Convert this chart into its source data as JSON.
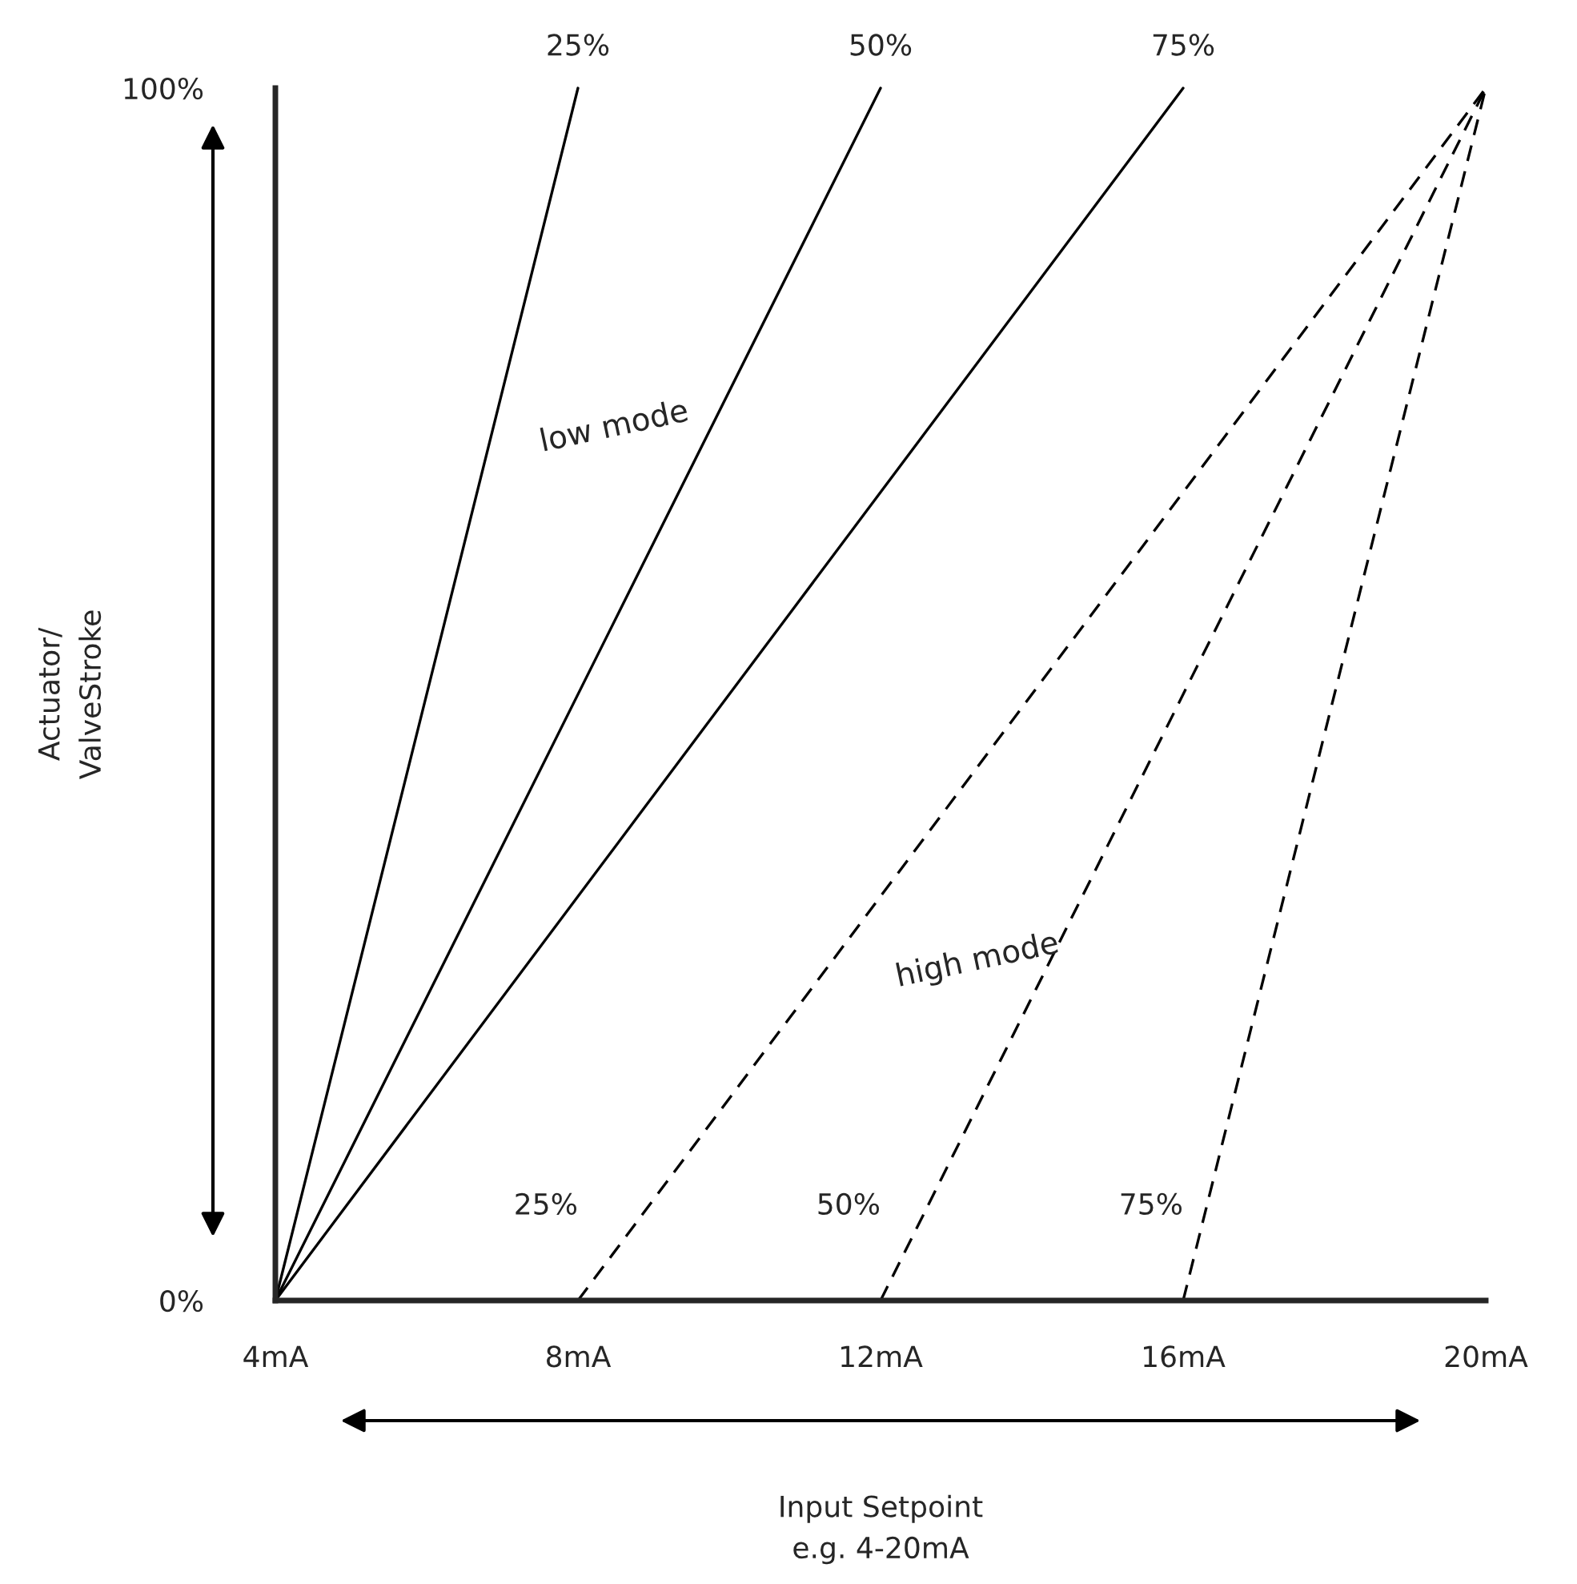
{
  "chart_data": {
    "type": "line",
    "xlabel": "Input Setpoint\ne.g. 4-20mA",
    "ylabel": "Actuator/\nValveStroke",
    "xlim": [
      4,
      20
    ],
    "ylim": [
      0,
      100
    ],
    "xticks": [
      {
        "value": 4,
        "label": "4mA"
      },
      {
        "value": 8,
        "label": "8mA"
      },
      {
        "value": 12,
        "label": "12mA"
      },
      {
        "value": 16,
        "label": "16mA"
      },
      {
        "value": 20,
        "label": "20mA"
      }
    ],
    "yticks": [
      {
        "value": 0,
        "label": "0%"
      },
      {
        "value": 100,
        "label": "100%"
      }
    ],
    "series": [
      {
        "name": "25%",
        "color": "#000000",
        "x": [
          4,
          8
        ],
        "values": [
          0,
          100
        ],
        "line_style": "solid"
      },
      {
        "name": "50%",
        "color": "#000000",
        "x": [
          4,
          12
        ],
        "values": [
          0,
          100
        ],
        "line_style": "solid"
      },
      {
        "name": "75%",
        "color": "#000000",
        "x": [
          4,
          16
        ],
        "values": [
          0,
          100
        ],
        "line_style": "solid"
      },
      {
        "name": "25%",
        "color": "#000000",
        "x": [
          8,
          20
        ],
        "values": [
          0,
          100
        ],
        "line_style": "dashed"
      },
      {
        "name": "50%",
        "color": "#000000",
        "x": [
          12,
          20
        ],
        "values": [
          0,
          100
        ],
        "line_style": "dashed"
      },
      {
        "name": "75%",
        "color": "#000000",
        "x": [
          16,
          20
        ],
        "values": [
          0,
          100
        ],
        "line_style": "dashed"
      }
    ],
    "annotations": [
      "low mode",
      "high mode"
    ],
    "grid": false,
    "legend": false
  }
}
